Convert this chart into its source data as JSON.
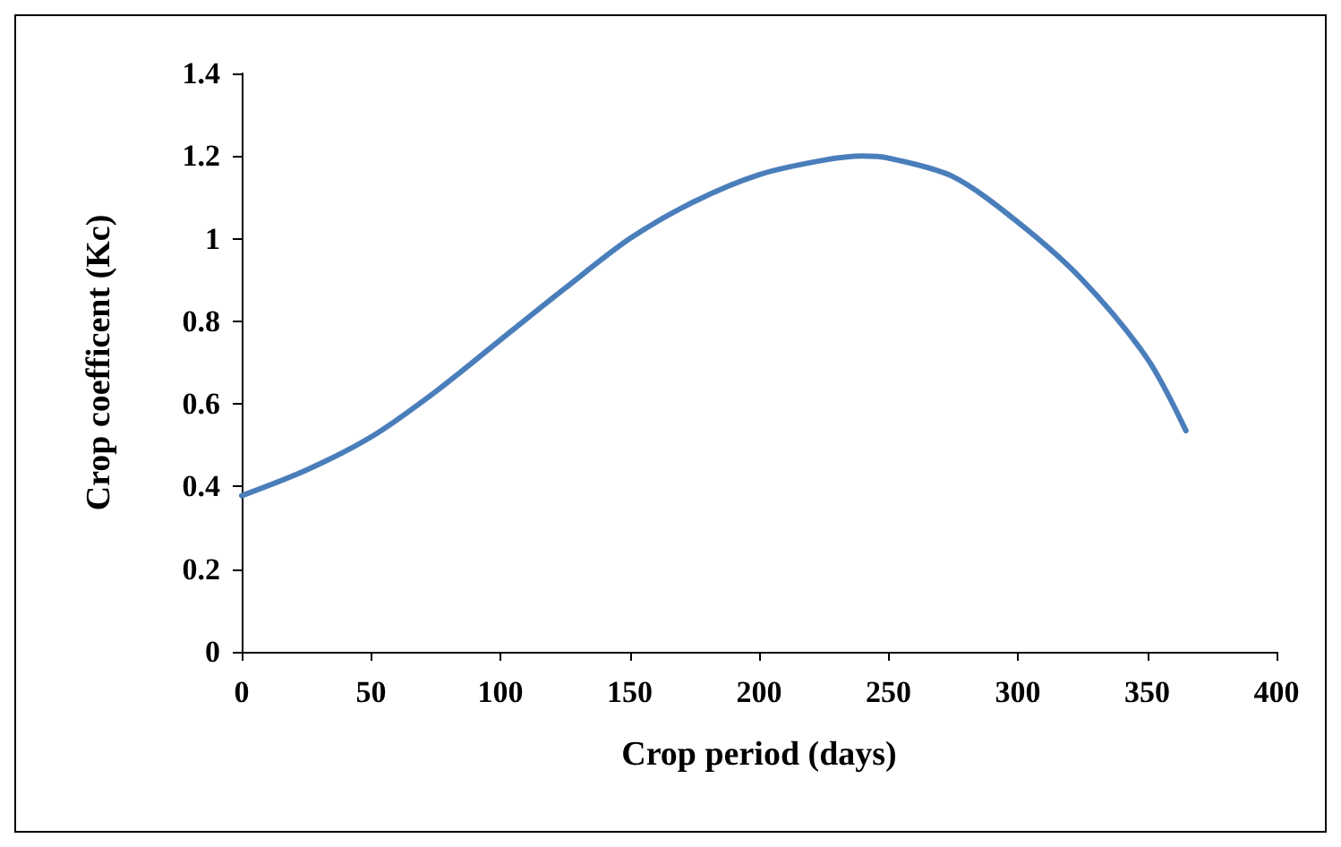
{
  "chart_data": {
    "type": "line",
    "xlabel": "Crop period (days)",
    "ylabel": "Crop coefficent (Kc)",
    "x": [
      0,
      25,
      50,
      75,
      100,
      125,
      150,
      175,
      200,
      225,
      240,
      250,
      275,
      300,
      325,
      350,
      365
    ],
    "series": [
      {
        "color": "#4a7ebb",
        "values": [
          0.378,
          0.44,
          0.52,
          0.63,
          0.755,
          0.88,
          1.0,
          1.09,
          1.155,
          1.19,
          1.2,
          1.195,
          1.15,
          1.04,
          0.9,
          0.71,
          0.535
        ]
      }
    ],
    "xlim": [
      0,
      400
    ],
    "xticks": [
      0,
      50,
      100,
      150,
      200,
      250,
      300,
      350,
      400
    ],
    "ylim": [
      0,
      1.4
    ],
    "yticks": [
      0,
      0.2,
      0.4,
      0.6,
      0.8,
      1,
      1.2,
      1.4
    ],
    "grid": false,
    "marker": "none",
    "line_style": "solid"
  }
}
